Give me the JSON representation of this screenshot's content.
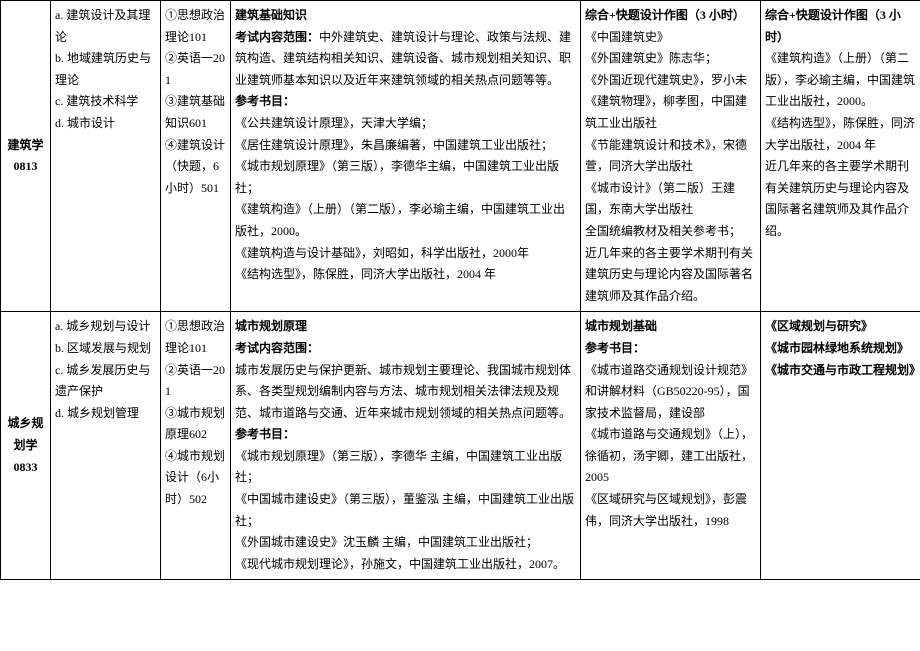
{
  "rows": [
    {
      "major_code": "建筑学\n0813",
      "directions": "a. 建筑设计及其理论\nb. 地域建筑历史与理论\nc. 建筑技术科学\nd. 城市设计",
      "subjects": "①思想政治理论101\n②英语一201\n③建筑基础知识601\n④建筑设计（快题，6 小时）501",
      "content_title": "建筑基础知识",
      "content_range_label": "考试内容范围：",
      "content_range": "中外建筑史、建筑设计与理论、政策与法规、建筑构造、建筑结构相关知识、建筑设备、城市规划相关知识、职业建筑师基本知识以及近年来建筑领域的相关热点问题等等。",
      "refs_label": "参考书目：",
      "refs": [
        "《公共建筑设计原理》，天津大学编；",
        "《居住建筑设计原理》，朱昌廉编著，中国建筑工业出版社；",
        "《城市规划原理》（第三版），李德华主编，中国建筑工业出版社；",
        "《建筑构造》（上册）（第二版），李必瑜主编，中国建筑工业出版社，2000。",
        "《建筑构造与设计基础》，刘昭如，科学出版社，2000年",
        "《结构选型》，陈保胜，同济大学出版社，2004 年"
      ],
      "col5_title": "综合+快题设计作图（3 小时）",
      "col5_body": [
        "《中国建筑史》",
        "《外国建筑史》陈志华；",
        "《外国近现代建筑史》，罗小未",
        "《建筑物理》，柳孝图，中国建筑工业出版社",
        "《节能建筑设计和技术》，宋德萱，同济大学出版社",
        "《城市设计》（第二版）王建国，东南大学出版社",
        "全国统编教材及相关参考书；",
        "近几年来的各主要学术期刊有关建筑历史与理论内容及国际著名建筑师及其作品介绍。"
      ],
      "col6_title": "综合+快题设计作图（3 小时）",
      "col6_body": [
        "《建筑构造》（上册）（第二版），李必瑜主编，中国建筑工业出版社，2000。",
        "《结构选型》，陈保胜，同济大学出版社，2004 年",
        "近几年来的各主要学术期刊有关建筑历史与理论内容及国际著名建筑师及其作品介绍。"
      ]
    },
    {
      "major_code": "城乡规划学\n0833",
      "directions": "a. 城乡规划与设计\nb. 区域发展与规划\nc. 城乡发展历史与遗产保护\nd. 城乡规划管理",
      "subjects": "①思想政治理论101\n②英语一201\n③城市规划原理602\n④城市规划设计（6小时）502",
      "content_title": "城市规划原理",
      "content_range_label": "考试内容范围：",
      "content_range": "城市发展历史与保护更新、城市规划主要理论、我国城市规划体系、各类型规划编制内容与方法、城市规划相关法律法规及规范、城市道路与交通、近年来城市规划领域的相关热点问题等。",
      "refs_label": "参考书目：",
      "refs": [
        "《城市规划原理》（第三版），李德华 主编，中国建筑工业出版社；",
        "《中国城市建设史》（第三版），董鉴泓 主编，中国建筑工业出版社；",
        "《外国城市建设史》沈玉麟 主编，中国建筑工业出版社；",
        "《现代城市规划理论》，孙施文，中国建筑工业出版社，2007。"
      ],
      "col5_title": "城市规划基础",
      "col5_refs_label": "参考书目：",
      "col5_body": [
        "《城市道路交通规划设计规范》和讲解材料（GB50220-95），国家技术监督局，建设部",
        "《城市道路与交通规划》（上），徐循初，汤宇卿，建工出版社，2005",
        "《区域研究与区域规划》，彭震伟，同济大学出版社，1998"
      ],
      "col6_titles": [
        "《区域规划与研究》",
        "《城市园林绿地系统规划》",
        "《城市交通与市政工程规划》"
      ]
    }
  ],
  "col_widths": [
    "50",
    "110",
    "70",
    "350",
    "180",
    "160"
  ]
}
